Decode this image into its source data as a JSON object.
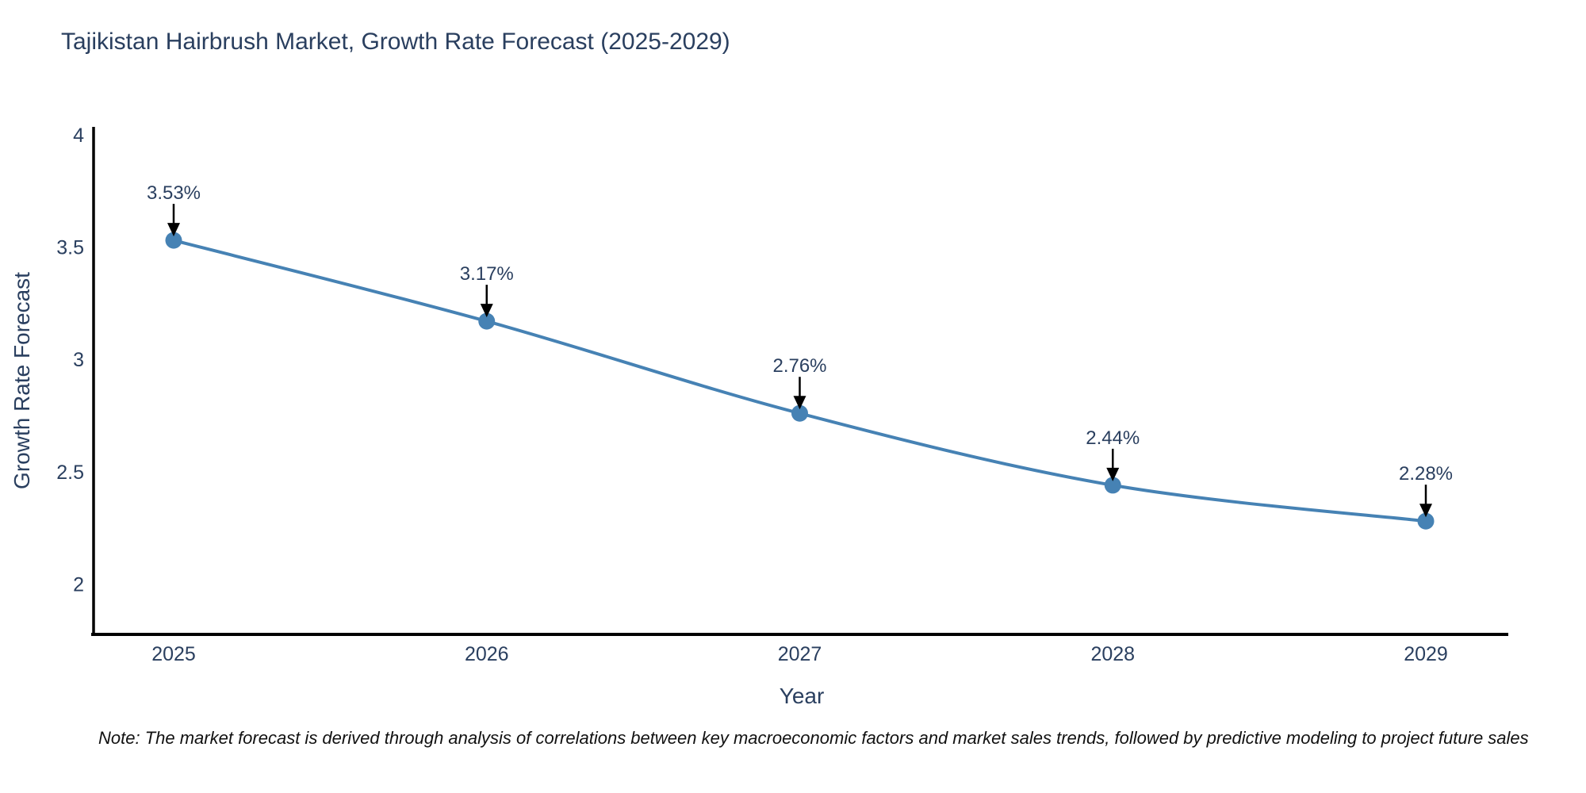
{
  "page": {
    "background": "#ffffff"
  },
  "chart_data": {
    "type": "line",
    "title": "Tajikistan Hairbrush Market, Growth Rate Forecast (2025-2029)",
    "xlabel": "Year",
    "ylabel": "Growth Rate Forecast",
    "categories": [
      "2025",
      "2026",
      "2027",
      "2028",
      "2029"
    ],
    "series": [
      {
        "name": "Growth Rate Forecast",
        "values": [
          3.53,
          3.17,
          2.76,
          2.44,
          2.28
        ]
      }
    ],
    "point_labels": [
      "3.53%",
      "3.17%",
      "2.76%",
      "2.44%",
      "2.28%"
    ],
    "y_ticks": [
      4,
      3.5,
      3,
      2.5,
      2
    ],
    "ylim": [
      1.776,
      4.035
    ],
    "grid": false,
    "legend": "none",
    "line_shape": "spline",
    "colors": {
      "line": "#4682b4",
      "marker": "#4682b4",
      "axis": "#000000",
      "text": "#2a3f5f",
      "annotation_arrow": "#000000"
    }
  },
  "note": {
    "text": "Note: The market forecast is derived through analysis of correlations between key macroeconomic factors and market sales trends, followed by predictive modeling to project future sales"
  }
}
